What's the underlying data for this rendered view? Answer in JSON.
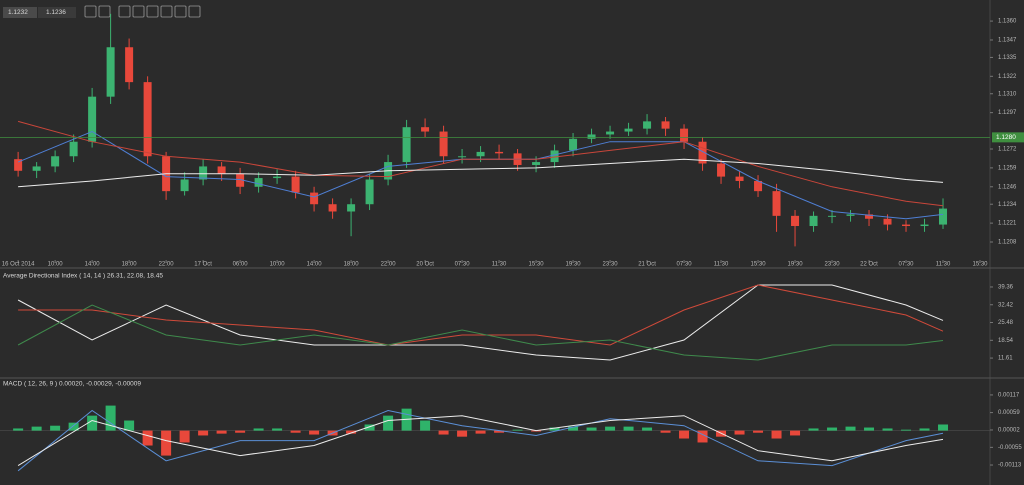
{
  "quote": {
    "bid": 1.1232,
    "ask": 1.1236
  },
  "chart_data": [
    {
      "type": "candlestick",
      "x": [
        0,
        0.5,
        1,
        1.5,
        2,
        2.5,
        3,
        3.5,
        4,
        4.5,
        5,
        5.5,
        6,
        6.5,
        7,
        7.5,
        8,
        8.5,
        9,
        9.5,
        10,
        10.5,
        11,
        11.5,
        12,
        12.5,
        13,
        13.5,
        14,
        14.5,
        15,
        15.5,
        16,
        16.5,
        17,
        17.5,
        18,
        18.5,
        19,
        19.5,
        20,
        20.5,
        21,
        21.5,
        22,
        22.5,
        23,
        23.5,
        24,
        24.5,
        25
      ],
      "open": [
        1.1265,
        1.1257,
        1.126,
        1.1267,
        1.1277,
        1.1308,
        1.1342,
        1.1318,
        1.1267,
        1.1243,
        1.1251,
        1.126,
        1.1255,
        1.1246,
        1.1252,
        1.1253,
        1.1242,
        1.1234,
        1.1229,
        1.1234,
        1.1251,
        1.1263,
        1.1287,
        1.1284,
        1.1267,
        1.1267,
        1.127,
        1.1269,
        1.1261,
        1.1263,
        1.1271,
        1.1279,
        1.1282,
        1.1284,
        1.1286,
        1.1291,
        1.1286,
        1.1277,
        1.1262,
        1.1253,
        1.125,
        1.1243,
        1.1226,
        1.1219,
        1.1226,
        1.1226,
        1.1227,
        1.1224,
        1.122,
        1.1219,
        1.122
      ],
      "high": [
        1.127,
        1.1263,
        1.1271,
        1.1282,
        1.1314,
        1.1365,
        1.1348,
        1.1322,
        1.127,
        1.1256,
        1.1265,
        1.1263,
        1.1259,
        1.1256,
        1.1258,
        1.1257,
        1.1246,
        1.1238,
        1.1238,
        1.1255,
        1.1268,
        1.1292,
        1.1293,
        1.1288,
        1.1272,
        1.1274,
        1.1275,
        1.1272,
        1.1267,
        1.1275,
        1.1283,
        1.1286,
        1.1288,
        1.129,
        1.1296,
        1.1294,
        1.1289,
        1.128,
        1.1265,
        1.1257,
        1.1254,
        1.1248,
        1.123,
        1.1229,
        1.123,
        1.123,
        1.123,
        1.1227,
        1.1223,
        1.1224,
        1.1238
      ],
      "low": [
        1.1253,
        1.1252,
        1.1256,
        1.1263,
        1.1273,
        1.1303,
        1.1313,
        1.1262,
        1.1237,
        1.124,
        1.1247,
        1.125,
        1.1241,
        1.1242,
        1.1248,
        1.1238,
        1.1229,
        1.1224,
        1.1212,
        1.123,
        1.1247,
        1.1259,
        1.128,
        1.1262,
        1.1262,
        1.1263,
        1.1265,
        1.1257,
        1.1256,
        1.1259,
        1.1267,
        1.1276,
        1.1279,
        1.1281,
        1.1282,
        1.1281,
        1.1272,
        1.1257,
        1.1248,
        1.1245,
        1.1239,
        1.1215,
        1.1205,
        1.1215,
        1.1221,
        1.1222,
        1.1219,
        1.1216,
        1.1215,
        1.1215,
        1.1217
      ],
      "close": [
        1.1257,
        1.126,
        1.1267,
        1.1277,
        1.1308,
        1.1342,
        1.1318,
        1.1267,
        1.1243,
        1.1251,
        1.126,
        1.1255,
        1.1246,
        1.1252,
        1.1253,
        1.1242,
        1.1234,
        1.1229,
        1.1234,
        1.1251,
        1.1263,
        1.1287,
        1.1284,
        1.1267,
        1.1267,
        1.127,
        1.1269,
        1.1261,
        1.1263,
        1.1271,
        1.1279,
        1.1282,
        1.1284,
        1.1286,
        1.1291,
        1.1286,
        1.1277,
        1.1262,
        1.1253,
        1.125,
        1.1243,
        1.1226,
        1.1219,
        1.1226,
        1.1226,
        1.1227,
        1.1224,
        1.122,
        1.1219,
        1.122,
        1.1231
      ],
      "up_color": "#3cb371",
      "down_color": "#e8483b",
      "series": [
        {
          "color": "#4f7fd4",
          "x": [
            0,
            2,
            4,
            6,
            8,
            10,
            12,
            14,
            16,
            18,
            20,
            22,
            24,
            25
          ],
          "values": [
            1.1263,
            1.1284,
            1.1253,
            1.1251,
            1.1239,
            1.126,
            1.1265,
            1.1265,
            1.1277,
            1.1277,
            1.125,
            1.1229,
            1.1224,
            1.1227
          ]
        },
        {
          "color": "#c9463a",
          "x": [
            0,
            2,
            4,
            6,
            8,
            10,
            12,
            14,
            16,
            18,
            20,
            22,
            24,
            25
          ],
          "values": [
            1.1291,
            1.1277,
            1.1267,
            1.1263,
            1.1254,
            1.1253,
            1.1265,
            1.1265,
            1.1271,
            1.1277,
            1.126,
            1.1246,
            1.1236,
            1.1233
          ]
        },
        {
          "color": "#ececec",
          "x": [
            0,
            2,
            4,
            6,
            8,
            10,
            12,
            14,
            16,
            18,
            20,
            22,
            24,
            25
          ],
          "values": [
            1.1246,
            1.125,
            1.1255,
            1.1255,
            1.1254,
            1.1257,
            1.1258,
            1.1259,
            1.1262,
            1.1265,
            1.1262,
            1.1257,
            1.1251,
            1.1249
          ]
        }
      ],
      "price_line": {
        "value": 1.128,
        "label": "1.1280"
      },
      "price_line_color": "#3f8f3f",
      "xlim": [
        -0.49,
        26.27
      ],
      "xticks": [
        {
          "value": 0,
          "label": "16 Oct 2014"
        },
        {
          "value": 1,
          "label": "10:00"
        },
        {
          "value": 2,
          "label": "14:00"
        },
        {
          "value": 3,
          "label": "18:00"
        },
        {
          "value": 4,
          "label": "22:00"
        },
        {
          "value": 5,
          "label": "17 Oct"
        },
        {
          "value": 6,
          "label": "06:00"
        },
        {
          "value": 7,
          "label": "10:00"
        },
        {
          "value": 8,
          "label": "14:00"
        },
        {
          "value": 9,
          "label": "18:00"
        },
        {
          "value": 10,
          "label": "22:00"
        },
        {
          "value": 11,
          "label": "20 Oct"
        },
        {
          "value": 12,
          "label": "07:30"
        },
        {
          "value": 13,
          "label": "11:30"
        },
        {
          "value": 14,
          "label": "15:30"
        },
        {
          "value": 15,
          "label": "19:30"
        },
        {
          "value": 16,
          "label": "23:30"
        },
        {
          "value": 17,
          "label": "21 Oct"
        },
        {
          "value": 18,
          "label": "07:30"
        },
        {
          "value": 19,
          "label": "11:30"
        },
        {
          "value": 20,
          "label": "15:30"
        },
        {
          "value": 21,
          "label": "19:30"
        },
        {
          "value": 22,
          "label": "23:30"
        },
        {
          "value": 23,
          "label": "22 Oct"
        },
        {
          "value": 24,
          "label": "07:30"
        },
        {
          "value": 25,
          "label": "11:30"
        },
        {
          "value": 26,
          "label": "15:30"
        }
      ],
      "ylim": [
        1.1197,
        1.1369
      ],
      "yticks": [
        {
          "value": 1.136,
          "label": "1.1360"
        },
        1.1347,
        1.1335,
        1.1322,
        {
          "value": 1.131,
          "label": "1.1310"
        },
        1.1297,
        1.1272,
        1.1259,
        1.1246,
        1.1234,
        1.1221,
        1.1208
      ]
    },
    {
      "type": "line",
      "title": "Average Directional Index ( 14, 14 ) 26.31, 22.08, 18.45",
      "series": [
        {
          "color": "#ececec",
          "x": [
            0,
            2,
            4,
            6,
            8,
            10,
            12,
            14,
            16,
            18,
            20,
            22,
            24,
            25
          ],
          "values": [
            34.28,
            18.66,
            32.33,
            20.61,
            16.7,
            16.7,
            16.7,
            12.8,
            10.84,
            18.66,
            40.14,
            40.14,
            32.33,
            26.31
          ]
        },
        {
          "color": "#d04a3a",
          "x": [
            0,
            2,
            4,
            6,
            8,
            10,
            12,
            14,
            16,
            18,
            20,
            22,
            24,
            25
          ],
          "values": [
            30.38,
            30.38,
            26.47,
            24.52,
            22.56,
            16.7,
            20.61,
            20.61,
            16.7,
            30.38,
            40.14,
            34.28,
            28.42,
            22.08
          ]
        },
        {
          "color": "#3f8a4c",
          "x": [
            0,
            2,
            4,
            6,
            8,
            10,
            12,
            14,
            16,
            18,
            20,
            22,
            24,
            25
          ],
          "values": [
            16.7,
            32.33,
            20.61,
            16.7,
            20.61,
            16.7,
            22.56,
            16.7,
            18.66,
            12.8,
            10.84,
            16.7,
            16.7,
            18.45
          ]
        }
      ],
      "xlim": [
        -0.49,
        26.27
      ],
      "ylim": [
        5,
        45.2
      ],
      "yticks": [
        39.36,
        32.42,
        25.48,
        18.54,
        11.61
      ]
    },
    {
      "type": "macd",
      "title": "MACD ( 12, 26, 9 ) 0.00020, -0.00029, -0.00009",
      "histogram": {
        "up_color": "#2fb36a",
        "down_color": "#e8483b",
        "x": [
          0,
          0.5,
          1,
          1.5,
          2,
          2.5,
          3,
          3.5,
          4,
          4.5,
          5,
          5.5,
          6,
          6.5,
          7,
          7.5,
          8,
          8.5,
          9,
          9.5,
          10,
          10.5,
          11,
          11.5,
          12,
          12.5,
          13,
          13.5,
          14,
          14.5,
          15,
          15.5,
          16,
          16.5,
          17,
          17.5,
          18,
          18.5,
          19,
          19.5,
          20,
          20.5,
          21,
          21.5,
          22,
          22.5,
          23,
          23.5,
          24,
          24.5,
          25
        ],
        "values": [
          7e-05,
          0.00013,
          0.00016,
          0.00026,
          0.00049,
          0.00082,
          0.00033,
          -0.00049,
          -0.00082,
          -0.00039,
          -0.00016,
          -0.0001,
          -7e-05,
          7e-05,
          7e-05,
          -7e-05,
          -0.00013,
          -0.00016,
          -0.0001,
          0.0002,
          0.00049,
          0.00072,
          0.00033,
          -0.00013,
          -0.0002,
          -0.0001,
          -7e-05,
          3e-05,
          -3e-05,
          0.0001,
          0.00013,
          0.0001,
          0.00013,
          0.00013,
          0.0001,
          -7e-05,
          -0.00026,
          -0.00039,
          -0.0002,
          -0.00013,
          -7e-05,
          -0.00026,
          -0.00016,
          7e-05,
          0.0001,
          0.00013,
          0.0001,
          7e-05,
          3e-05,
          7e-05,
          0.0002
        ]
      },
      "series": [
        {
          "color": "#5b8fd6",
          "x": [
            0,
            2,
            4,
            6,
            8,
            10,
            12,
            14,
            16,
            18,
            20,
            22,
            24,
            25
          ],
          "values": [
            -0.00132,
            0.00066,
            -0.00099,
            -0.00033,
            -0.00033,
            0.00066,
            0.00016,
            -0.00016,
            0.00039,
            0.00016,
            -0.00099,
            -0.00115,
            -0.00033,
            -9e-05
          ]
        },
        {
          "color": "#ececec",
          "x": [
            0,
            2,
            4,
            6,
            8,
            10,
            12,
            14,
            16,
            18,
            20,
            22,
            24,
            25
          ],
          "values": [
            -0.00115,
            0.00033,
            -0.00033,
            -0.00082,
            -0.00049,
            0.00033,
            0.00049,
            0,
            0.00033,
            0.00049,
            -0.00066,
            -0.00099,
            -0.00049,
            -0.00029
          ]
        }
      ],
      "xlim": [
        -0.49,
        26.27
      ],
      "ylim": [
        -0.00172,
        0.00166
      ],
      "yticks": [
        0.00117,
        0.00059,
        2e-05,
        -0.00055,
        -0.00113
      ]
    }
  ]
}
